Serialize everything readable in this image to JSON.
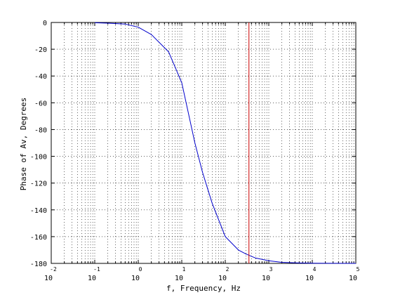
{
  "chart_data": {
    "type": "line",
    "title": "",
    "xlabel": "f, Frequency, Hz",
    "ylabel": "Phase of Av, Degrees",
    "x_scale": "log",
    "xlim": [
      0.01,
      100000
    ],
    "ylim": [
      -180,
      0
    ],
    "x_ticks": [
      {
        "base": "10",
        "exp": "-2"
      },
      {
        "base": "10",
        "exp": "-1"
      },
      {
        "base": "10",
        "exp": "0"
      },
      {
        "base": "10",
        "exp": "1"
      },
      {
        "base": "10",
        "exp": "2"
      },
      {
        "base": "10",
        "exp": "3"
      },
      {
        "base": "10",
        "exp": "4"
      },
      {
        "base": "10",
        "exp": "5"
      }
    ],
    "y_ticks": [
      "0",
      "-20",
      "-40",
      "-60",
      "-80",
      "-100",
      "-120",
      "-140",
      "-160",
      "-180"
    ],
    "grid": true,
    "grid_style": "dotted",
    "series": [
      {
        "color": "#0000cc",
        "x": [
          0.1,
          0.2,
          0.5,
          1,
          2,
          5,
          10,
          20,
          30,
          50,
          100,
          200,
          300,
          500,
          1000,
          2000,
          5000,
          10000,
          100000
        ],
        "y": [
          -0.2,
          -0.5,
          -1.2,
          -3.5,
          -9,
          -22,
          -45,
          -90,
          -112,
          -135,
          -160,
          -170,
          -173,
          -176,
          -178,
          -179.2,
          -179.7,
          -179.9,
          -180
        ]
      }
    ],
    "vertical_lines": [
      {
        "x": 350,
        "color": "#cc0000"
      }
    ]
  }
}
